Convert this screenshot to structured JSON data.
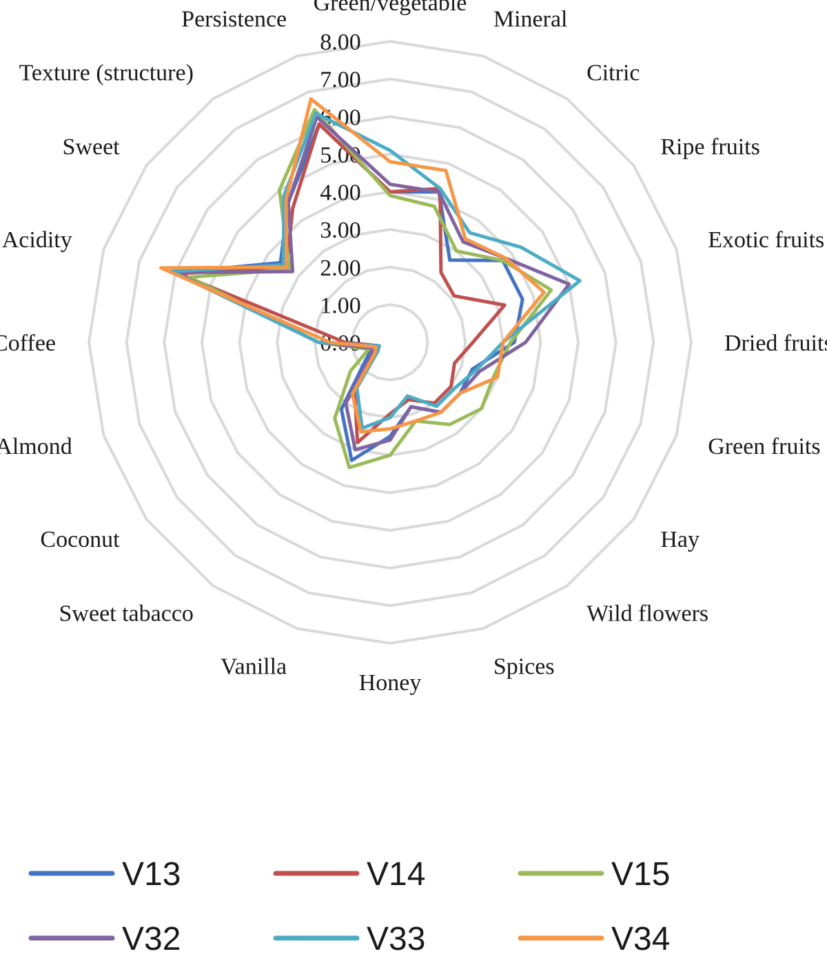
{
  "chart_data": {
    "type": "radar",
    "title": "",
    "axes": [
      "Green/vegetable",
      "Mineral",
      "Citric",
      "Ripe fruits",
      "Exotic fruits",
      "Dried fruits",
      "Green fruits",
      "Hay",
      "Wild flowers",
      "Spices",
      "Honey",
      "Vanilla",
      "Sweet tabacco",
      "Coconut",
      "Almond",
      "Coffee",
      "Acidity",
      "Sweet",
      "Texture (structure)",
      "Persistence"
    ],
    "tick_labels": [
      "0.00",
      "1.00",
      "2.00",
      "3.00",
      "4.00",
      "5.00",
      "6.00",
      "7.00",
      "8.00"
    ],
    "rlim": [
      0,
      8
    ],
    "grid": true,
    "legend_position": "bottom",
    "series": [
      {
        "name": "V13",
        "color": "#4472C4",
        "values": [
          4.0,
          4.2,
          2.7,
          3.7,
          3.7,
          3.3,
          2.3,
          2.3,
          2.3,
          1.8,
          2.5,
          3.3,
          2.2,
          0.8,
          0.5,
          1.9,
          6.0,
          3.6,
          4.6,
          6.1
        ]
      },
      {
        "name": "V14",
        "color": "#C0504D",
        "values": [
          4.0,
          4.3,
          2.3,
          2.1,
          3.2,
          2.2,
          1.8,
          2.0,
          2.0,
          1.6,
          1.9,
          2.8,
          1.6,
          0.6,
          0.3,
          1.2,
          5.9,
          3.4,
          4.4,
          6.1
        ]
      },
      {
        "name": "V15",
        "color": "#9BBB59",
        "values": [
          3.9,
          3.8,
          3.0,
          3.7,
          4.5,
          3.2,
          2.9,
          3.0,
          2.7,
          2.2,
          3.0,
          3.5,
          2.5,
          1.3,
          0.6,
          1.9,
          5.6,
          3.3,
          5.0,
          6.5
        ]
      },
      {
        "name": "V32",
        "color": "#8064A2",
        "values": [
          4.2,
          4.2,
          3.3,
          3.8,
          5.0,
          3.6,
          2.5,
          2.3,
          2.3,
          1.8,
          2.6,
          3.0,
          2.0,
          0.6,
          0.5,
          1.9,
          6.0,
          3.2,
          4.6,
          6.3
        ]
      },
      {
        "name": "V33",
        "color": "#4BACC6",
        "values": [
          5.1,
          4.3,
          3.6,
          4.3,
          5.3,
          3.0,
          2.4,
          2.1,
          2.1,
          1.5,
          2.0,
          2.4,
          1.5,
          0.4,
          0.3,
          1.9,
          6.1,
          3.5,
          4.8,
          6.4
        ]
      },
      {
        "name": "V34",
        "color": "#F79646",
        "values": [
          4.8,
          4.8,
          3.4,
          3.8,
          4.3,
          3.0,
          3.0,
          2.3,
          2.3,
          2.2,
          2.3,
          2.5,
          1.7,
          0.5,
          0.4,
          1.6,
          6.4,
          3.4,
          4.7,
          6.8
        ]
      }
    ]
  }
}
